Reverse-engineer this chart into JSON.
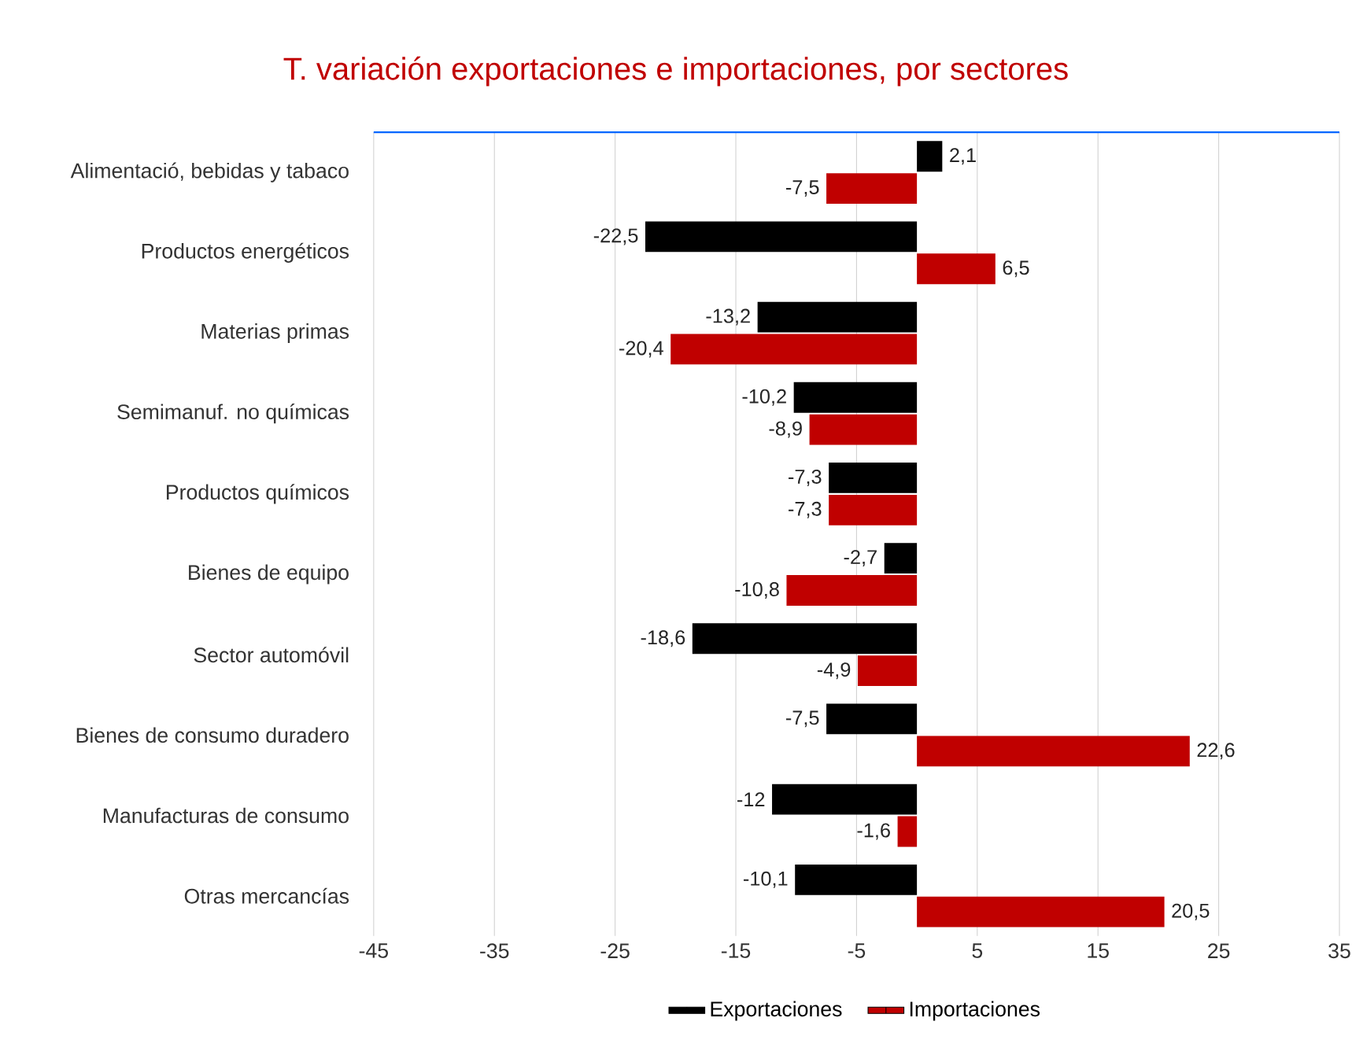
{
  "chart_data": {
    "type": "bar",
    "orientation": "horizontal",
    "title": "T. variación exportaciones e importaciones, por sectores",
    "categories": [
      "Alimentació, bebidas y tabaco",
      "Productos energéticos",
      "Materias primas",
      "Semimanuf. no químicas",
      "Productos químicos",
      "Bienes de equipo",
      "Sector automóvil",
      "Bienes de consumo duradero",
      "Manufacturas  de consumo",
      "Otras mercancías"
    ],
    "series": [
      {
        "name": "Exportaciones",
        "color": "#000000",
        "values": [
          2.1,
          -22.5,
          -13.2,
          -10.2,
          -7.3,
          -2.7,
          -18.6,
          -7.5,
          -12,
          -10.1
        ],
        "value_labels": [
          "2,1",
          "-22,5",
          "-13,2",
          "-10,2",
          "-7,3",
          "-2,7",
          "-18,6",
          "-7,5",
          "-12",
          "-10,1"
        ]
      },
      {
        "name": "Importaciones",
        "color": "#c00000",
        "values": [
          -7.5,
          6.5,
          -20.4,
          -8.9,
          -7.3,
          -10.8,
          -4.9,
          22.6,
          -1.6,
          20.5
        ],
        "value_labels": [
          "-7,5",
          "6,5",
          "-20,4",
          "-8,9",
          "-7,3",
          "-10,8",
          "-4,9",
          "22,6",
          "-1,6",
          "20,5"
        ]
      }
    ],
    "xlim": [
      -45,
      35
    ],
    "xticks": [
      -45,
      -35,
      -25,
      -15,
      -5,
      5,
      15,
      25,
      35
    ],
    "grid": "x",
    "legend": "bottom"
  }
}
